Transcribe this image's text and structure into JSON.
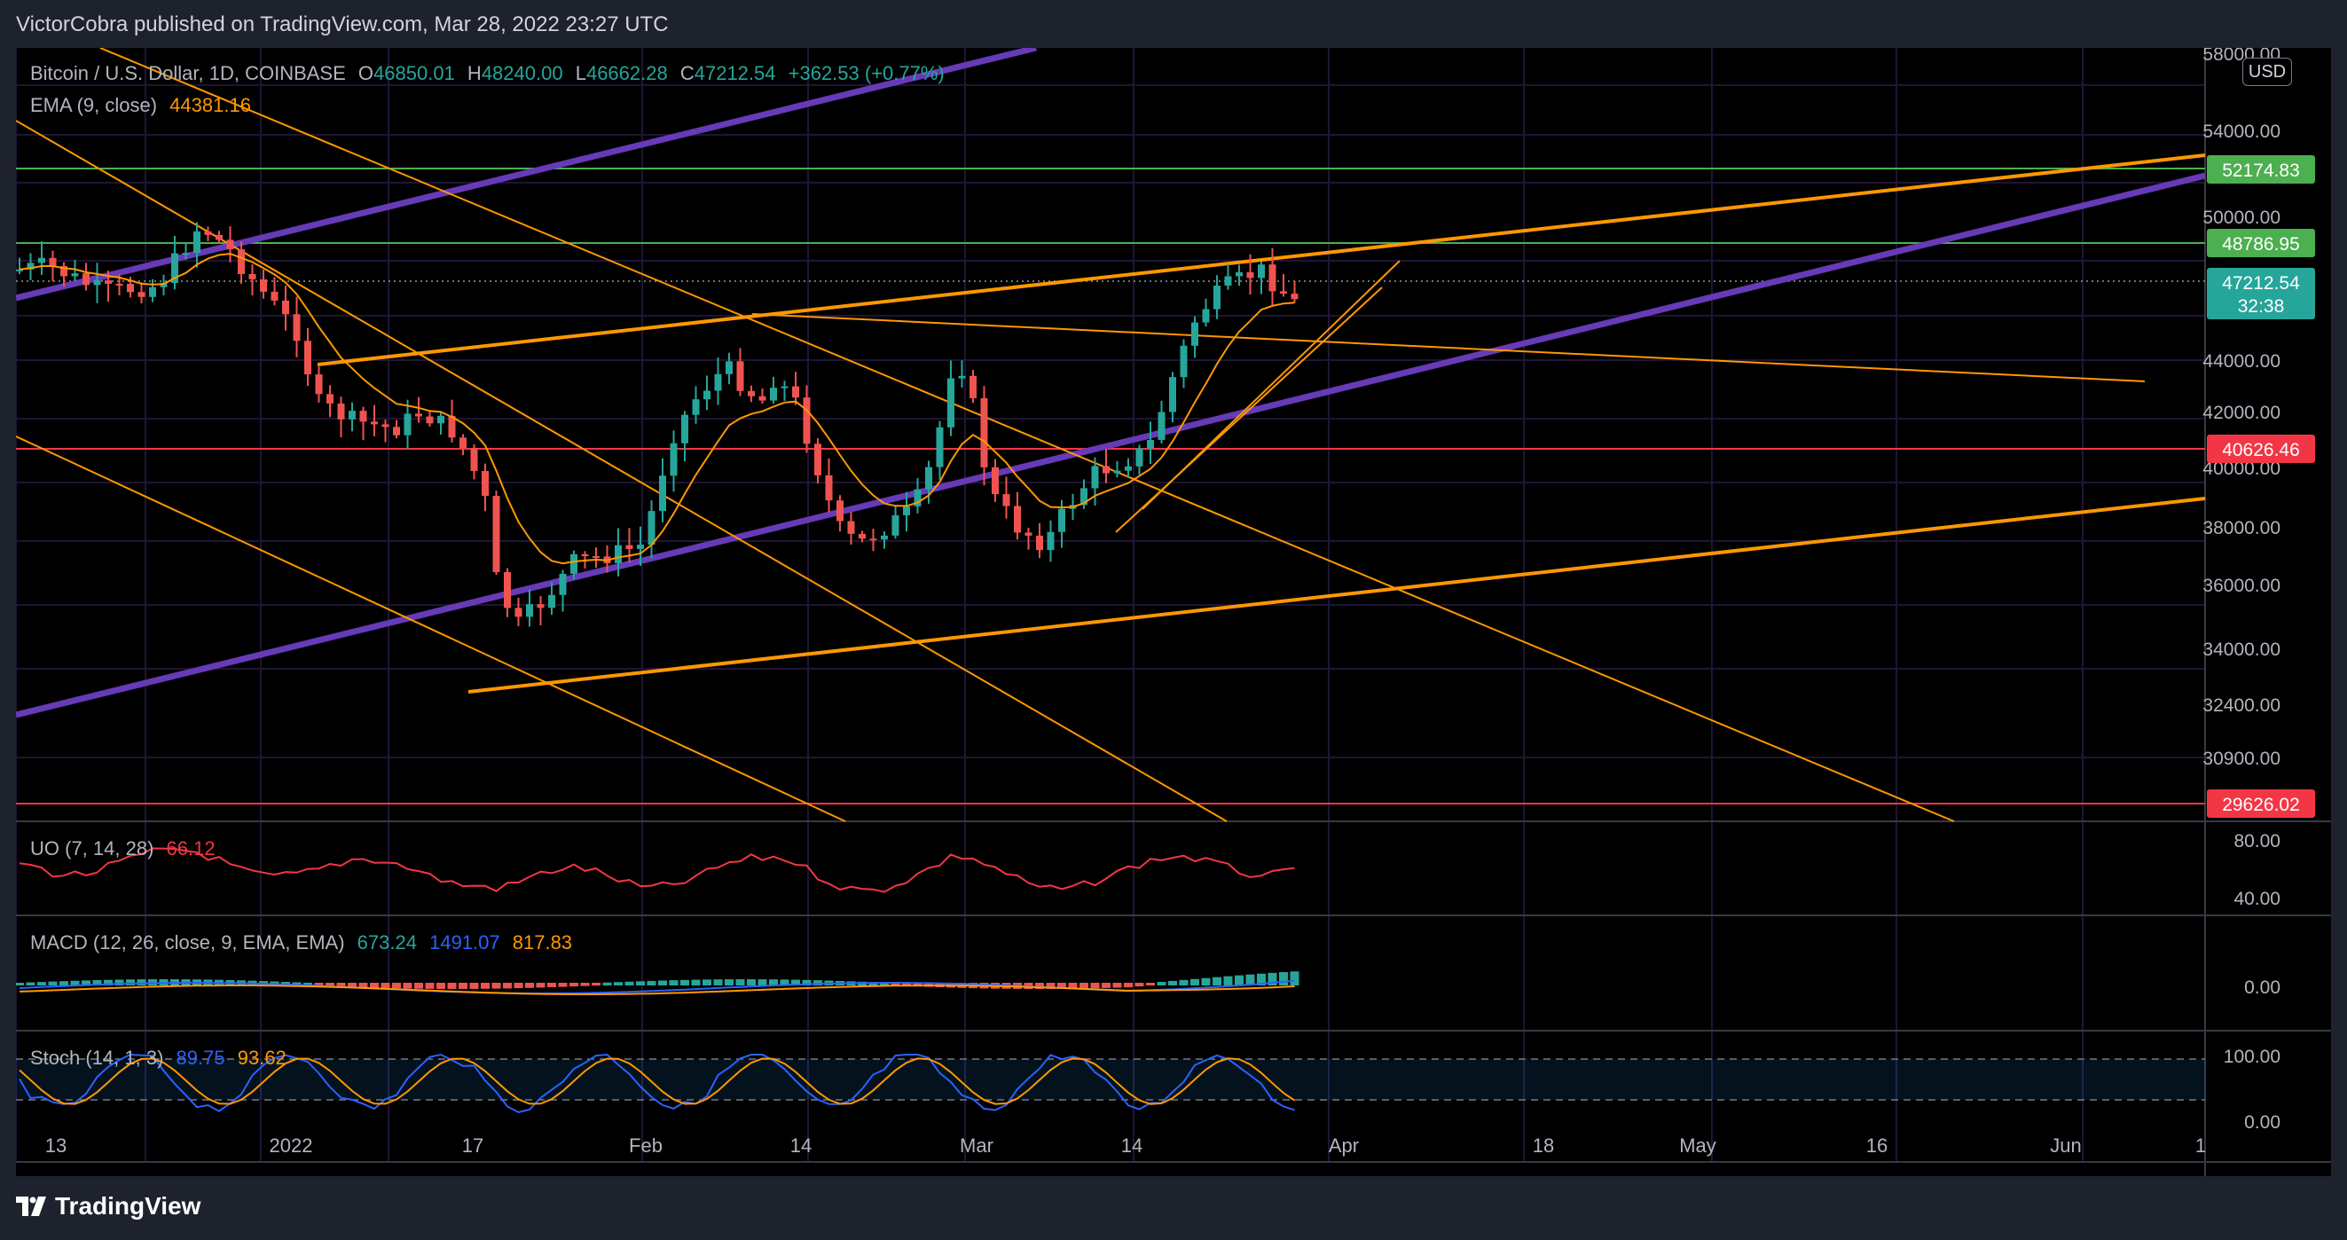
{
  "header": {
    "published": "VictorCobra published on TradingView.com, Mar 28, 2022 23:27 UTC"
  },
  "symbol": {
    "name": "Bitcoin / U.S. Dollar, 1D, COINBASE",
    "open_label": "O",
    "open": "46850.01",
    "high_label": "H",
    "high": "48240.00",
    "low_label": "L",
    "low": "46662.28",
    "close_label": "C",
    "close": "47212.54",
    "change": "+362.53 (+0.77%)"
  },
  "ema": {
    "label": "EMA (9, close)",
    "value": "44381.16"
  },
  "uo": {
    "label": "UO (7, 14, 28)",
    "value": "66.12"
  },
  "macd": {
    "label": "MACD (12, 26, close, 9, EMA, EMA)",
    "v1": "673.24",
    "v2": "1491.07",
    "v3": "817.83"
  },
  "stoch": {
    "label": "Stoch (14, 1, 3)",
    "k": "89.75",
    "d": "93.62"
  },
  "currency": "USD",
  "price_axis": [
    "58000.00",
    "54000.00",
    "50000.00",
    "44000.00",
    "42000.00",
    "40000.00",
    "38000.00",
    "36000.00",
    "34000.00",
    "32400.00",
    "30900.00"
  ],
  "price_badges": [
    {
      "value": "52174.83",
      "color": "#4caf50"
    },
    {
      "value": "48786.95",
      "color": "#4caf50"
    },
    {
      "value": "40626.46",
      "color": "#f23645"
    },
    {
      "value": "29626.02",
      "color": "#f23645"
    }
  ],
  "last_price": {
    "value": "47212.54",
    "countdown": "32:38"
  },
  "uo_axis": [
    "80.00",
    "40.00"
  ],
  "macd_axis": [
    "0.00"
  ],
  "stoch_axis": [
    "100.00",
    "0.00"
  ],
  "time_axis": [
    "13",
    "2022",
    "17",
    "Feb",
    "14",
    "Mar",
    "14",
    "Apr",
    "18",
    "May",
    "16",
    "Jun",
    "1"
  ],
  "footer": {
    "brand": "TradingView"
  },
  "colors": {
    "up": "#26a69a",
    "down": "#ef5350",
    "ema": "#ff9800",
    "purple": "#673ab7",
    "orange": "#ff9800",
    "green": "#4caf50",
    "red": "#f23645"
  }
}
